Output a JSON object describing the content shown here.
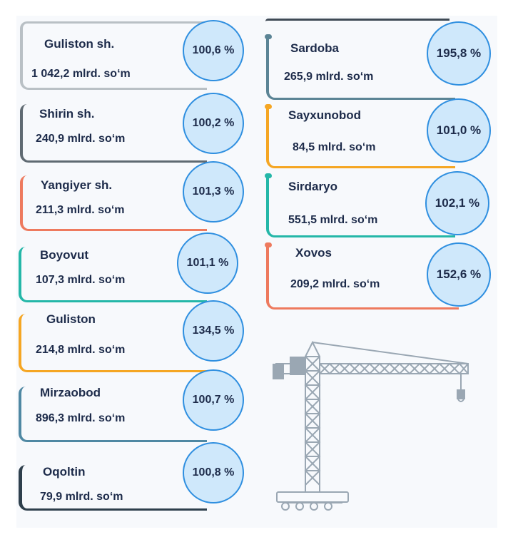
{
  "colors": {
    "circle_fill": "#cfe8fb",
    "circle_border": "#2f8fe0",
    "text": "#1d2b4a",
    "crane": "#9aa7b3"
  },
  "left_districts": [
    {
      "name": "Guliston sh.",
      "value": "1 042,2 mlrd. so‘m",
      "percent": "100,6 %",
      "color": "#b9c0c5"
    },
    {
      "name": "Shirin sh.",
      "value": "240,9 mlrd. so‘m",
      "percent": "100,2 %",
      "color": "#5f6a72"
    },
    {
      "name": "Yangiyer sh.",
      "value": "211,3 mlrd. so‘m",
      "percent": "101,3 %",
      "color": "#ee7a5e"
    },
    {
      "name": "Boyovut",
      "value": "107,3 mlrd. so‘m",
      "percent": "101,1 %",
      "color": "#24b7a8"
    },
    {
      "name": "Guliston",
      "value": "214,8 mlrd. so‘m",
      "percent": "134,5 %",
      "color": "#f5a623"
    },
    {
      "name": "Mirzaobod",
      "value": "896,3 mlrd. so‘m",
      "percent": "100,7 %",
      "color": "#4f88a3"
    },
    {
      "name": "Oqoltin",
      "value": "79,9 mlrd. so‘m",
      "percent": "100,8 %",
      "color": "#2e3f4c"
    }
  ],
  "right_districts": [
    {
      "name": "Sardoba",
      "value": "265,9 mlrd. so‘m",
      "percent": "195,8 %",
      "color": "#5b8495"
    },
    {
      "name": "Sayxunobod",
      "value": "84,5 mlrd. so‘m",
      "percent": "101,0 %",
      "color": "#f5a623"
    },
    {
      "name": "Sirdaryo",
      "value": "551,5 mlrd. so‘m",
      "percent": "102,1 %",
      "color": "#24b7a8"
    },
    {
      "name": "Xovos",
      "value": "209,2 mlrd. so‘m",
      "percent": "152,6 %",
      "color": "#ee7a5e"
    }
  ],
  "illustration": {
    "icon": "tower-crane-icon"
  }
}
